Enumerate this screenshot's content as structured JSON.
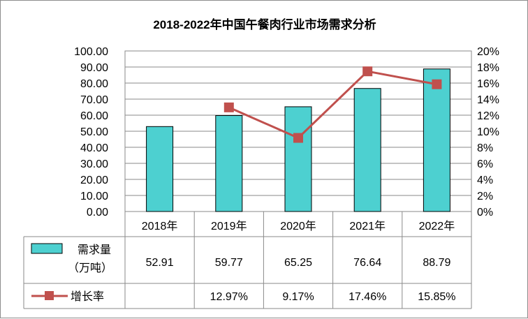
{
  "title": "2018-2022年中国午餐肉行业市场需求分析",
  "chart_data": {
    "type": "bar",
    "title": "2018-2022年中国午餐肉行业市场需求分析",
    "categories": [
      "2018年",
      "2019年",
      "2020年",
      "2021年",
      "2022年"
    ],
    "series": [
      {
        "name": "需求量（万吨）",
        "type": "bar",
        "axis": "left",
        "color": "#4dd0d0",
        "values": [
          52.91,
          59.77,
          65.25,
          76.64,
          88.79
        ],
        "labels": [
          "52.91",
          "59.77",
          "65.25",
          "76.64",
          "88.79"
        ]
      },
      {
        "name": "增长率",
        "type": "line",
        "axis": "right",
        "color": "#c0504d",
        "values": [
          null,
          12.97,
          9.17,
          17.46,
          15.85
        ],
        "labels": [
          "",
          "12.97%",
          "9.17%",
          "17.46%",
          "15.85%"
        ]
      }
    ],
    "y_left": {
      "range": [
        0,
        100
      ],
      "ticks": [
        "0.00",
        "10.00",
        "20.00",
        "30.00",
        "40.00",
        "50.00",
        "60.00",
        "70.00",
        "80.00",
        "90.00",
        "100.00"
      ]
    },
    "y_right": {
      "range": [
        0,
        20
      ],
      "ticks": [
        "0%",
        "2%",
        "4%",
        "6%",
        "8%",
        "10%",
        "12%",
        "14%",
        "16%",
        "18%",
        "20%"
      ]
    },
    "grid": true,
    "legend": "data-table"
  },
  "table": {
    "legend_bar_line1": "需求量",
    "legend_bar_line2": "（万吨）",
    "legend_line": "增长率"
  }
}
